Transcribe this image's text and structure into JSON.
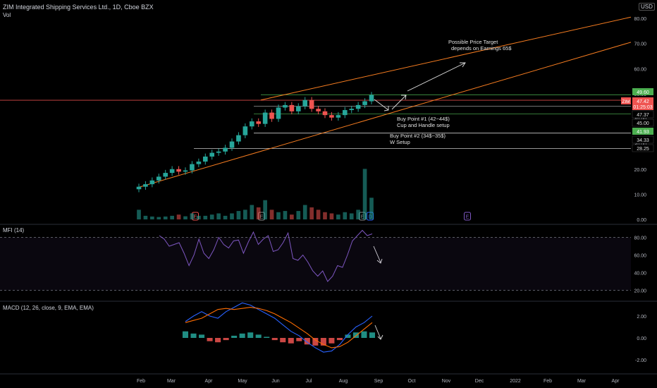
{
  "header": {
    "title": "ZIM Integrated Shipping Services Ltd., 1D, Cboe BZX",
    "volume_label": "Vol",
    "currency": "USD",
    "mfi_label": "MFI (14)",
    "macd_label": "MACD (12, 26, close, 9, EMA, EMA)"
  },
  "colors": {
    "up": "#26a69a",
    "down": "#ef5350",
    "trendline": "#f57c20",
    "resistance": "#4caf50",
    "mfi": "#7e57c2",
    "macd": "#2962ff",
    "signal": "#ff6d00",
    "background": "#000000"
  },
  "chart_data": [
    {
      "type": "candlestick",
      "panel": "price",
      "ylim": [
        0,
        80
      ],
      "price_ticks": [
        "80.00",
        "70.00",
        "60.00",
        "50.00",
        "40.00",
        "30.00",
        "20.00",
        "10.00",
        "0.00"
      ],
      "x_ticks": [
        "Feb",
        "Mar",
        "Apr",
        "May",
        "Jun",
        "Jul",
        "Aug",
        "Sep",
        "Oct",
        "Nov",
        "Dec",
        "2022",
        "Feb",
        "Mar",
        "Apr"
      ],
      "series": [
        {
          "type": "candlestick",
          "ohlc_weekly_close": [
            13,
            14,
            15.5,
            17,
            18.5,
            20,
            19,
            19.5,
            22,
            23,
            25,
            26.5,
            27,
            28.5,
            31,
            33.5,
            37,
            39,
            38,
            42.5,
            40,
            44.5,
            45.5,
            43,
            45,
            47.5,
            44,
            43,
            41.5,
            40.5,
            41.5,
            43.5,
            44,
            45.5,
            47,
            49.5
          ]
        },
        {
          "type": "bar",
          "name": "Vol",
          "values_m": [
            4,
            1.5,
            1.2,
            1,
            1.2,
            1.5,
            2,
            1.3,
            2.5,
            1.5,
            1.5,
            2,
            2.5,
            1.5,
            2.5,
            3.5,
            4,
            6,
            5,
            8,
            4,
            3,
            3.5,
            2,
            3.5,
            6,
            5,
            4,
            3,
            2.5,
            2,
            3,
            2.5,
            4,
            21,
            9
          ]
        }
      ],
      "price_labels": [
        {
          "label": "49.60",
          "color": "#4caf50"
        },
        {
          "label": "ZIM",
          "color": "#ef5350"
        },
        {
          "label": "47.42",
          "color": "#ef5350"
        },
        {
          "label": "01:25:03",
          "color": "#ef5350"
        },
        {
          "label": "47.37",
          "color": "#000000"
        },
        {
          "label": "45.00",
          "color": "#000000"
        },
        {
          "label": "41.93",
          "color": "#4caf50"
        },
        {
          "label": "34.33",
          "color": "#000000"
        },
        {
          "label": "28.25",
          "color": "#000000"
        }
      ],
      "annotations": [
        {
          "text": "Possible Price Target",
          "line2": "depends on Earnings 65$"
        },
        {
          "text": "Buy Point #1 (42~44$)",
          "line2": "Cup and Handle setup"
        },
        {
          "text": "Buy Point #2 (34$~35$)",
          "line2": "W Setup"
        }
      ],
      "event_markers": [
        "E",
        "E",
        "E",
        "D",
        "E"
      ]
    },
    {
      "type": "line",
      "panel": "mfi",
      "name": "MFI (14)",
      "ylim": [
        10,
        90
      ],
      "ticks": [
        "80.00",
        "60.00",
        "40.00",
        "20.00"
      ],
      "band": [
        20,
        80
      ],
      "values": [
        82,
        78,
        70,
        72,
        74,
        62,
        48,
        60,
        78,
        62,
        56,
        66,
        80,
        72,
        68,
        76,
        77,
        62,
        75,
        86,
        72,
        78,
        82,
        64,
        66,
        74,
        85,
        56,
        54,
        60,
        52,
        42,
        36,
        42,
        30,
        36,
        48,
        46,
        60,
        76,
        82,
        88,
        82,
        84
      ]
    },
    {
      "type": "line",
      "panel": "macd",
      "name": "MACD",
      "ylim": [
        -2.3,
        3.3
      ],
      "ticks": [
        "2.00",
        "0.00",
        "-2.00"
      ],
      "series": [
        {
          "name": "MACD",
          "values": [
            1.5,
            2.0,
            2.4,
            2.0,
            1.8,
            2.4,
            2.8,
            3.2,
            3.0,
            2.6,
            2.2,
            1.8,
            1.2,
            0.6,
            0.2,
            -0.4,
            -0.9,
            -1.3,
            -1.2,
            -0.6,
            0.3,
            1.0,
            1.4,
            2.0
          ]
        },
        {
          "name": "Signal",
          "values": [
            1.4,
            1.6,
            1.8,
            2.2,
            2.6,
            2.7,
            2.6,
            2.7,
            2.8,
            2.7,
            2.5,
            2.2,
            1.8,
            1.4,
            0.9,
            0.4,
            -0.2,
            -0.6,
            -0.9,
            -0.8,
            -0.4,
            0.2,
            0.8,
            1.4
          ]
        }
      ],
      "histogram": [
        0.6,
        0.4,
        0.3,
        -0.3,
        -0.4,
        -0.2,
        0.2,
        0.4,
        0.5,
        0.3,
        0.1,
        -0.2,
        -0.4,
        -0.5,
        -0.3,
        -0.6,
        -0.7,
        -0.7,
        -0.5,
        -0.2,
        0.3,
        0.5,
        0.6,
        0.5
      ]
    }
  ]
}
